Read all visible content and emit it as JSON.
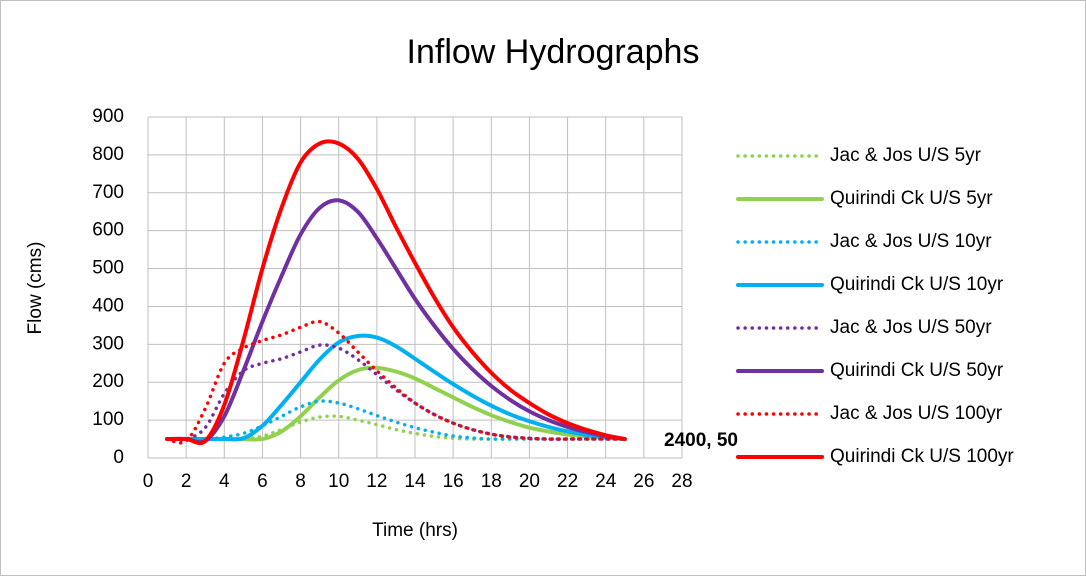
{
  "chart_data": {
    "type": "line",
    "title": "Inflow Hydrographs",
    "x_label": "Time (hrs)",
    "y_label": "Flow (cms)",
    "x": [
      1,
      2,
      3,
      4,
      5,
      6,
      7,
      8,
      9,
      10,
      11,
      12,
      13,
      14,
      15,
      16,
      17,
      18,
      19,
      20,
      21,
      22,
      23,
      24,
      25
    ],
    "xlim": [
      0,
      28
    ],
    "xticks": [
      0,
      2,
      4,
      6,
      8,
      10,
      12,
      14,
      16,
      18,
      20,
      22,
      24,
      26,
      28
    ],
    "ylim": [
      0,
      900
    ],
    "yticks": [
      0,
      100,
      200,
      300,
      400,
      500,
      600,
      700,
      800,
      900
    ],
    "grid": true,
    "legend": "right",
    "annotations": [
      {
        "text": "2400, 50"
      }
    ],
    "series": [
      {
        "name": "Jac & Jos U/S 5yr",
        "color": "#92d050",
        "style": "dotted",
        "values": [
          50,
          50,
          50,
          50,
          52,
          58,
          75,
          95,
          108,
          110,
          100,
          88,
          75,
          65,
          57,
          52,
          50,
          50,
          50,
          50,
          50,
          50,
          50,
          50,
          50
        ]
      },
      {
        "name": "Quirindi Ck U/S 5yr",
        "color": "#92d050",
        "style": "solid",
        "values": [
          50,
          50,
          50,
          50,
          50,
          50,
          70,
          110,
          160,
          205,
          232,
          238,
          228,
          210,
          185,
          160,
          135,
          113,
          95,
          80,
          70,
          62,
          57,
          53,
          50
        ]
      },
      {
        "name": "Jac & Jos U/S 10yr",
        "color": "#00b0f0",
        "style": "dotted",
        "values": [
          50,
          50,
          50,
          55,
          65,
          85,
          110,
          135,
          150,
          145,
          130,
          112,
          95,
          80,
          68,
          58,
          53,
          50,
          50,
          50,
          50,
          50,
          50,
          50,
          50
        ]
      },
      {
        "name": "Quirindi Ck U/S 10yr",
        "color": "#00b0f0",
        "style": "solid",
        "values": [
          50,
          50,
          50,
          50,
          52,
          85,
          140,
          200,
          260,
          305,
          322,
          318,
          295,
          262,
          228,
          195,
          165,
          138,
          115,
          97,
          82,
          70,
          61,
          55,
          50
        ]
      },
      {
        "name": "Jac & Jos U/S 50yr",
        "color": "#7030a0",
        "style": "dotted",
        "values": [
          50,
          50,
          80,
          170,
          230,
          250,
          262,
          280,
          298,
          290,
          260,
          220,
          180,
          145,
          115,
          92,
          75,
          63,
          56,
          52,
          50,
          50,
          50,
          50,
          50
        ]
      },
      {
        "name": "Quirindi Ck U/S 50yr",
        "color": "#7030a0",
        "style": "solid",
        "values": [
          50,
          50,
          45,
          110,
          230,
          360,
          480,
          590,
          660,
          680,
          650,
          580,
          500,
          420,
          350,
          288,
          235,
          190,
          153,
          123,
          100,
          82,
          68,
          58,
          50
        ]
      },
      {
        "name": "Jac & Jos U/S 100yr",
        "color": "#ff0000",
        "style": "dotted",
        "values": [
          50,
          45,
          130,
          250,
          290,
          310,
          325,
          345,
          360,
          330,
          280,
          230,
          185,
          145,
          115,
          92,
          75,
          63,
          55,
          52,
          50,
          50,
          50,
          50,
          50
        ]
      },
      {
        "name": "Quirindi Ck U/S 100yr",
        "color": "#ff0000",
        "style": "solid",
        "values": [
          50,
          50,
          45,
          140,
          310,
          500,
          660,
          780,
          830,
          830,
          790,
          710,
          610,
          515,
          425,
          345,
          280,
          225,
          180,
          145,
          115,
          92,
          74,
          60,
          50
        ]
      }
    ]
  }
}
